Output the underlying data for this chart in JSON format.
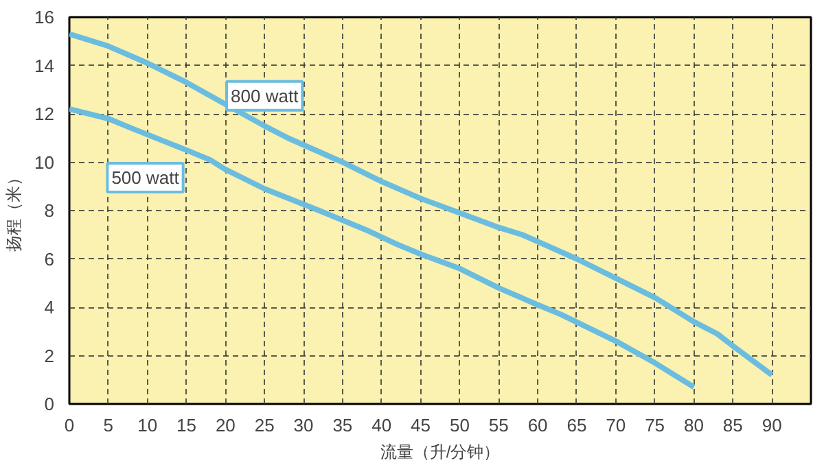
{
  "chart_data": {
    "type": "line",
    "xlabel": "流量（升/分钟）",
    "ylabel": "扬程（米）",
    "xlim": [
      0,
      95
    ],
    "xticks": [
      0,
      5,
      10,
      15,
      20,
      25,
      30,
      35,
      40,
      45,
      50,
      55,
      60,
      65,
      70,
      75,
      80,
      85,
      90
    ],
    "ylim": [
      0,
      16
    ],
    "yticks": [
      0,
      2,
      4,
      6,
      8,
      10,
      12,
      14,
      16
    ],
    "grid": true,
    "marker": "none",
    "line_style": "solid",
    "series": [
      {
        "name": "800 watt",
        "color": "#6bbde0",
        "x": [
          0,
          5,
          10,
          15,
          20,
          25,
          28,
          35,
          40,
          45,
          50,
          55,
          58,
          65,
          70,
          75,
          80,
          83,
          85,
          90
        ],
        "values": [
          15.3,
          14.8,
          14.1,
          13.3,
          12.4,
          11.5,
          11.0,
          10.0,
          9.2,
          8.5,
          7.9,
          7.3,
          7.0,
          6.0,
          5.2,
          4.4,
          3.4,
          2.9,
          2.4,
          1.2
        ]
      },
      {
        "name": "500 watt",
        "color": "#6bbde0",
        "x": [
          0,
          5,
          8,
          15,
          18,
          20,
          25,
          32,
          35,
          38,
          42,
          45,
          50,
          55,
          60,
          63,
          70,
          75,
          80
        ],
        "values": [
          12.2,
          11.8,
          11.4,
          10.5,
          10.1,
          9.7,
          8.9,
          8.0,
          7.6,
          7.2,
          6.6,
          6.2,
          5.6,
          4.8,
          4.1,
          3.7,
          2.6,
          1.7,
          0.7
        ]
      }
    ]
  }
}
